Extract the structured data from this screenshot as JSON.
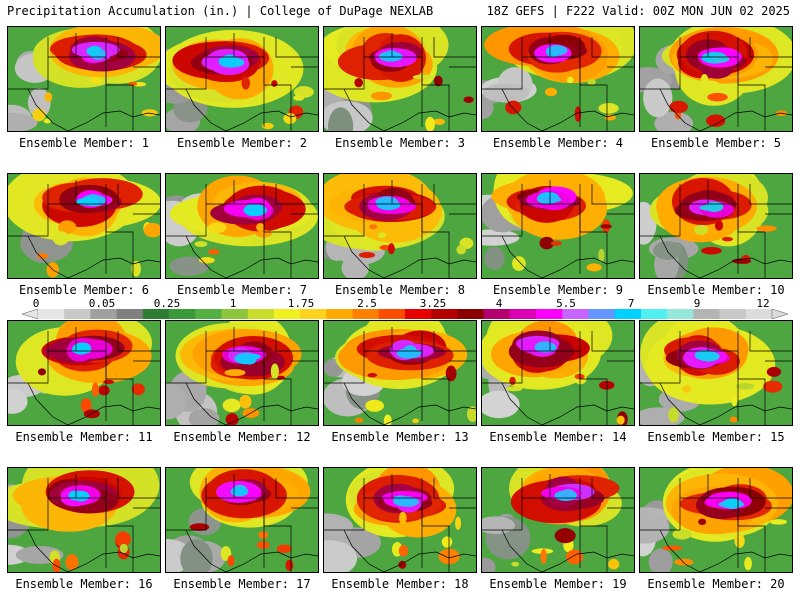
{
  "header": {
    "left": "Precipitation Accumulation (in.) | College of DuPage NEXLAB",
    "right": "18Z GEFS | F222 Valid: 00Z MON JUN 02 2025"
  },
  "panels": [
    {
      "label": "Ensemble Member: 1"
    },
    {
      "label": "Ensemble Member: 2"
    },
    {
      "label": "Ensemble Member: 3"
    },
    {
      "label": "Ensemble Member: 4"
    },
    {
      "label": "Ensemble Member: 5"
    },
    {
      "label": "Ensemble Member: 6"
    },
    {
      "label": "Ensemble Member: 7"
    },
    {
      "label": "Ensemble Member: 8"
    },
    {
      "label": "Ensemble Member: 9"
    },
    {
      "label": "Ensemble Member: 10"
    },
    {
      "label": "Ensemble Member: 11"
    },
    {
      "label": "Ensemble Member: 12"
    },
    {
      "label": "Ensemble Member: 13"
    },
    {
      "label": "Ensemble Member: 14"
    },
    {
      "label": "Ensemble Member: 15"
    },
    {
      "label": "Ensemble Member: 16"
    },
    {
      "label": "Ensemble Member: 17"
    },
    {
      "label": "Ensemble Member: 18"
    },
    {
      "label": "Ensemble Member: 19"
    },
    {
      "label": "Ensemble Member: 20"
    }
  ],
  "colorbar": {
    "tick_labels": [
      "0",
      "0.05",
      "0.25",
      "1",
      "1.75",
      "2.5",
      "3.25",
      "4",
      "5.5",
      "7",
      "9",
      "12"
    ],
    "colors": [
      "#e6e6e6",
      "#c8c8c8",
      "#a0a0a0",
      "#808080",
      "#2e7d32",
      "#3a9a3a",
      "#55b044",
      "#8cc63f",
      "#c8dc2a",
      "#f0f01e",
      "#ffd21e",
      "#ffaa00",
      "#ff7f00",
      "#ff4d00",
      "#e60000",
      "#b40000",
      "#8b0000",
      "#b4006e",
      "#dc00b4",
      "#ff00ff",
      "#c864ff",
      "#6496ff",
      "#00d2ff",
      "#50f0f0",
      "#96e6dc",
      "#b4b4b4",
      "#c8c8c8",
      "#dcdcdc"
    ]
  }
}
